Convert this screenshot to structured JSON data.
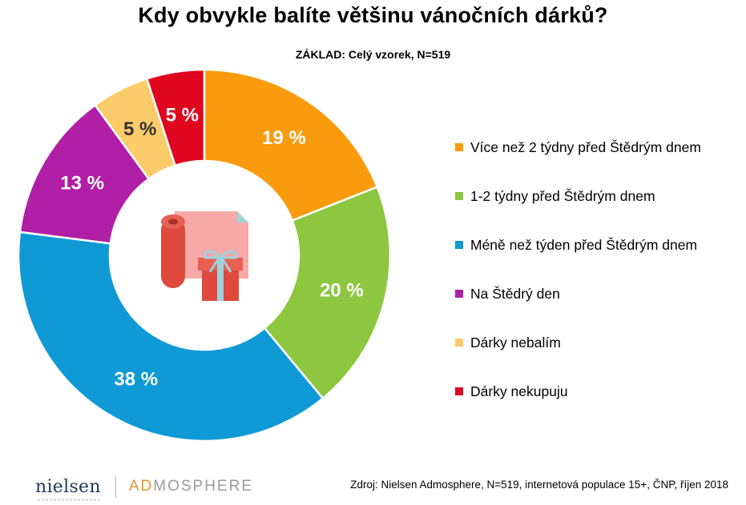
{
  "chart_data": {
    "type": "pie",
    "title": "Kdy obvykle balíte většinu vánočních dárků?",
    "subtitle": "ZÁKLAD: Celý vzorek, N=519",
    "categories": [
      "Více než 2 týdny před Štědrým dnem",
      "1-2 týdny před Štědrým dnem",
      "Méně než týden před Štědrým dnem",
      "Na Štědrý den",
      "Dárky nebalím",
      "Dárky nekupuju"
    ],
    "values": [
      19,
      20,
      38,
      13,
      5,
      5
    ],
    "value_labels": [
      "19 %",
      "20 %",
      "38 %",
      "13 %",
      "5 %",
      "5 %"
    ],
    "colors": [
      "#f99b0c",
      "#8dc63f",
      "#0f9ad6",
      "#b01fa5",
      "#fccb6a",
      "#e0061f"
    ],
    "label_colors": [
      "#ffffff",
      "#ffffff",
      "#ffffff",
      "#ffffff",
      "#333333",
      "#ffffff"
    ],
    "donut": true,
    "legend_position": "right"
  },
  "footer": {
    "logo_nielsen": "nielsen",
    "logo_ad": "AD",
    "logo_mosphere": "MOSPHERE",
    "source": "Zdroj: Nielsen Admosphere, N=519, internetová populace 15+, ČNP, říjen 2018"
  },
  "center_icon": "gift-wrapping-icon"
}
